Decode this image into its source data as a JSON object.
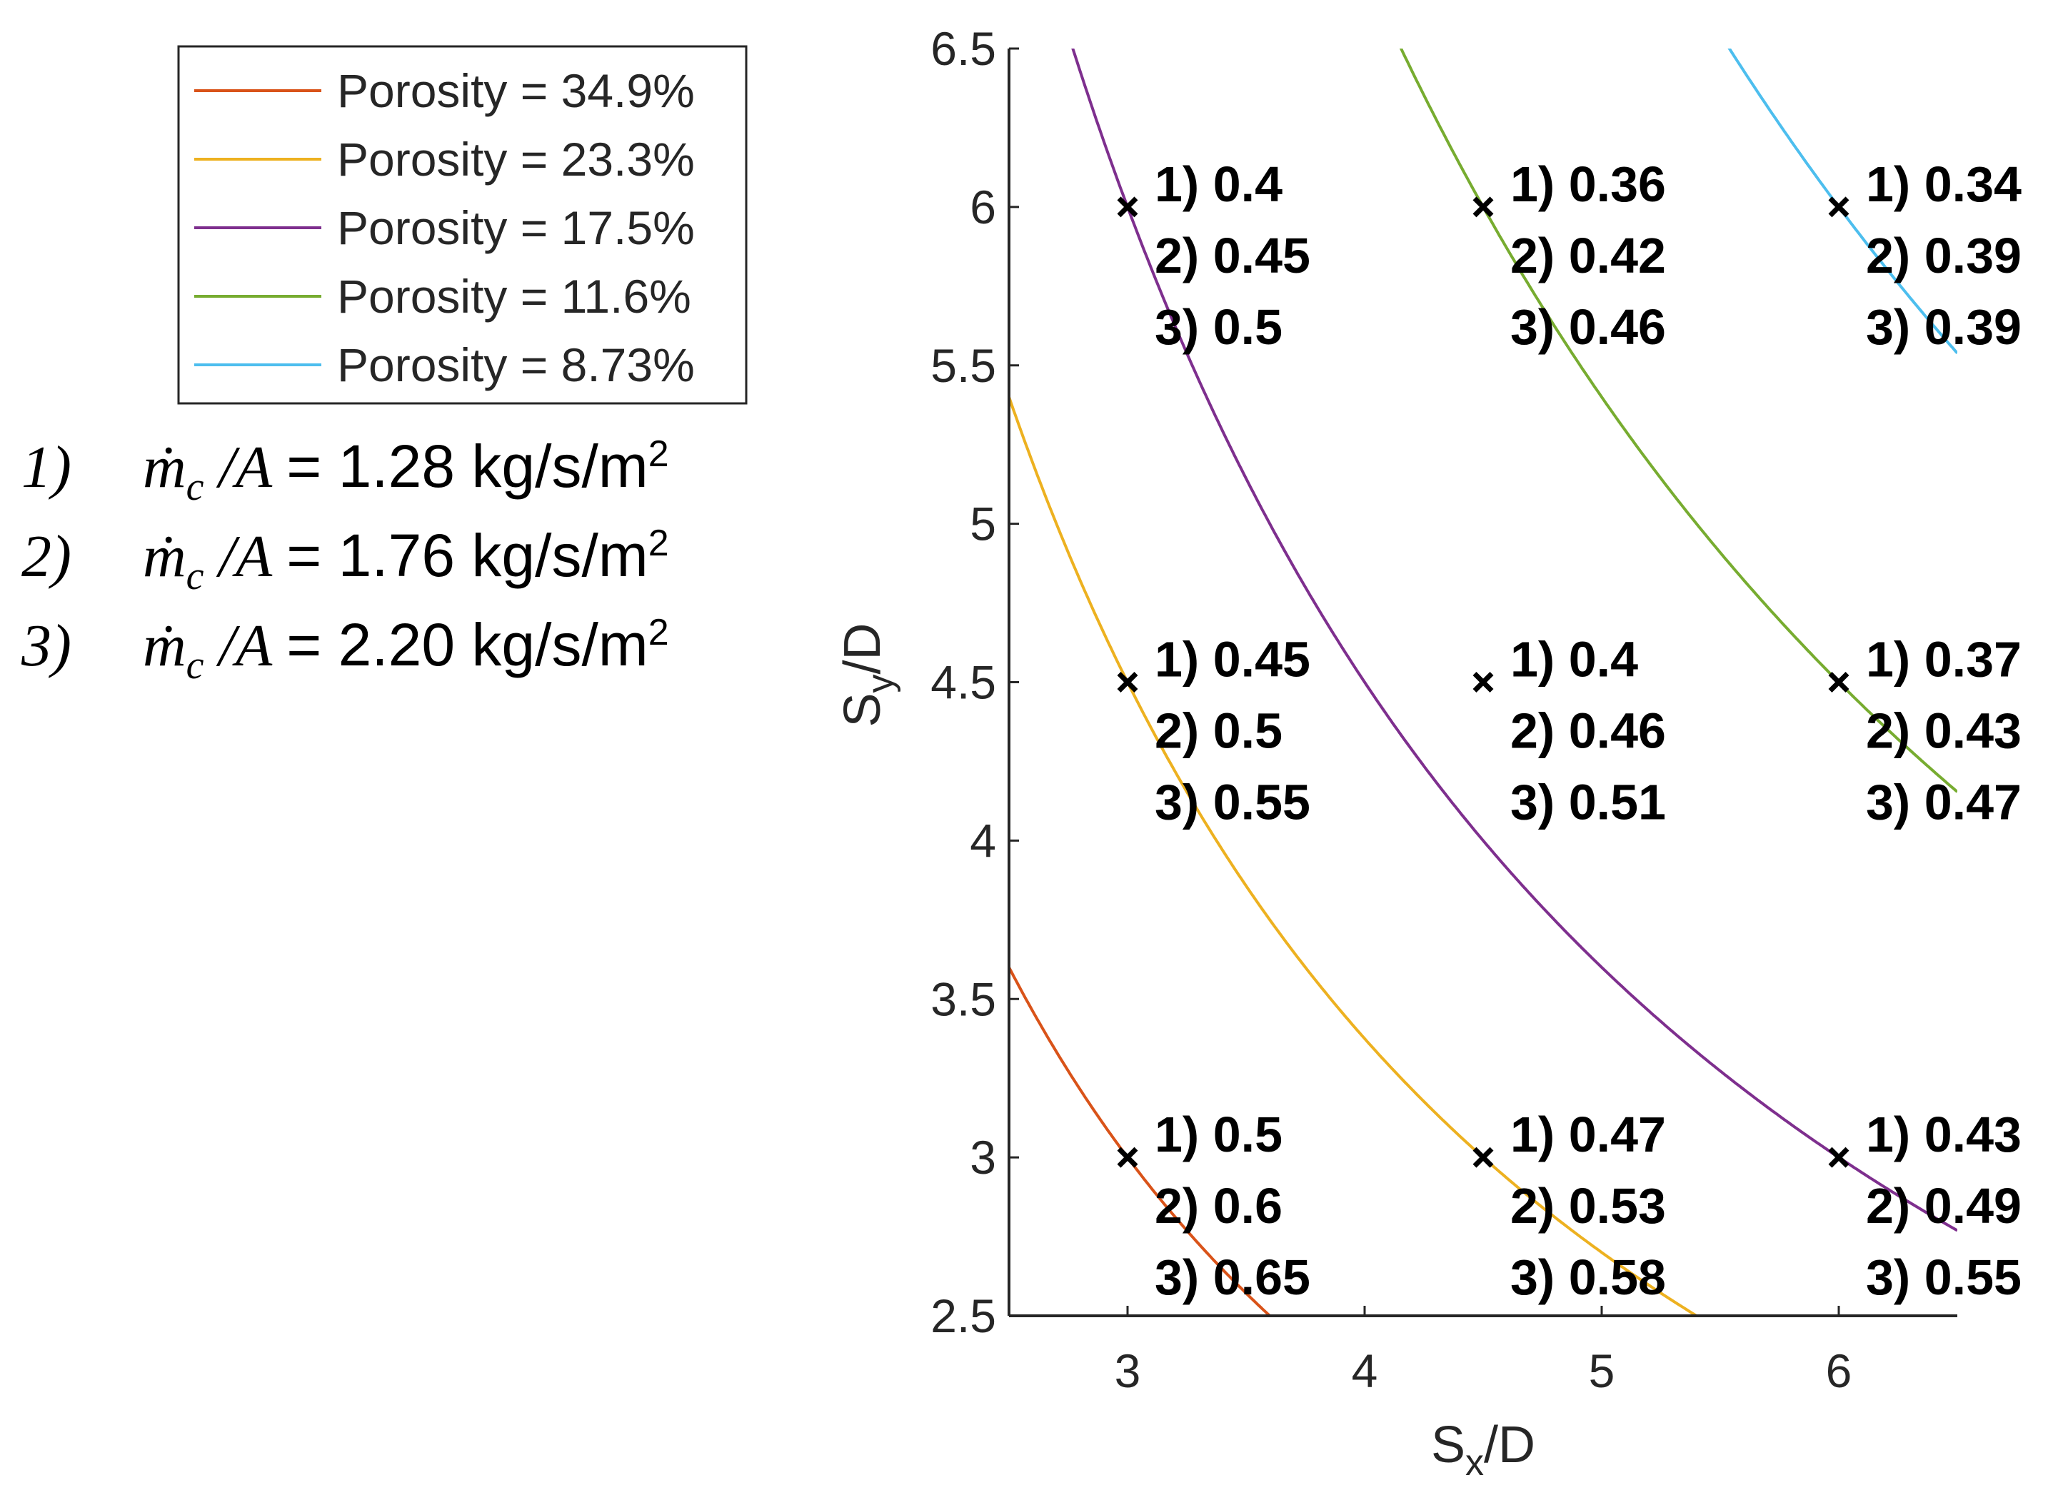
{
  "chart_data": {
    "type": "line",
    "xlabel": "Sx/D",
    "ylabel": "Sy/D",
    "xlim": [
      2.5,
      6.5
    ],
    "ylim": [
      2.5,
      6.5
    ],
    "xticks": [
      "3",
      "4",
      "5",
      "6"
    ],
    "yticks": [
      "2.5",
      "3",
      "3.5",
      "4",
      "4.5",
      "5",
      "5.5",
      "6",
      "6.5"
    ],
    "series": [
      {
        "name": "Porosity = 34.9%",
        "color": "#D95319",
        "k": 9.0
      },
      {
        "name": "Porosity = 23.3%",
        "color": "#EDB120",
        "k": 13.5
      },
      {
        "name": "Porosity = 17.5%",
        "color": "#7E2F8E",
        "k": 18.0
      },
      {
        "name": "Porosity = 11.6%",
        "color": "#77AC30",
        "k": 27.0
      },
      {
        "name": "Porosity = 8.73%",
        "color": "#4DBEEE",
        "k": 36.0
      }
    ],
    "points": [
      {
        "x": 3,
        "y": 6,
        "labels": [
          "1) 0.4",
          "2) 0.45",
          "3) 0.5"
        ]
      },
      {
        "x": 4.5,
        "y": 6,
        "labels": [
          "1) 0.36",
          "2) 0.42",
          "3) 0.46"
        ]
      },
      {
        "x": 6,
        "y": 6,
        "labels": [
          "1) 0.34",
          "2) 0.39",
          "3) 0.39"
        ]
      },
      {
        "x": 3,
        "y": 4.5,
        "labels": [
          "1) 0.45",
          "2) 0.5",
          "3) 0.55"
        ]
      },
      {
        "x": 4.5,
        "y": 4.5,
        "labels": [
          "1) 0.4",
          "2) 0.46",
          "3) 0.51"
        ]
      },
      {
        "x": 6,
        "y": 4.5,
        "labels": [
          "1) 0.37",
          "2) 0.43",
          "3) 0.47"
        ]
      },
      {
        "x": 3,
        "y": 3,
        "labels": [
          "1) 0.5",
          "2) 0.6",
          "3) 0.65"
        ]
      },
      {
        "x": 4.5,
        "y": 3,
        "labels": [
          "1) 0.47",
          "2) 0.53",
          "3) 0.58"
        ]
      },
      {
        "x": 6,
        "y": 3,
        "labels": [
          "1) 0.43",
          "2) 0.49",
          "3) 0.55"
        ]
      }
    ]
  },
  "flux_notes": [
    {
      "num": "1)",
      "symbol": "ṁ",
      "sub": "c",
      "sep": "/A",
      "value": "= 1.28 kg/s/m",
      "sup": "2"
    },
    {
      "num": "2)",
      "symbol": "ṁ",
      "sub": "c",
      "sep": "/A",
      "value": "= 1.76 kg/s/m",
      "sup": "2"
    },
    {
      "num": "3)",
      "symbol": "ṁ",
      "sub": "c",
      "sep": "/A",
      "value": "= 2.20 kg/s/m",
      "sup": "2"
    }
  ]
}
